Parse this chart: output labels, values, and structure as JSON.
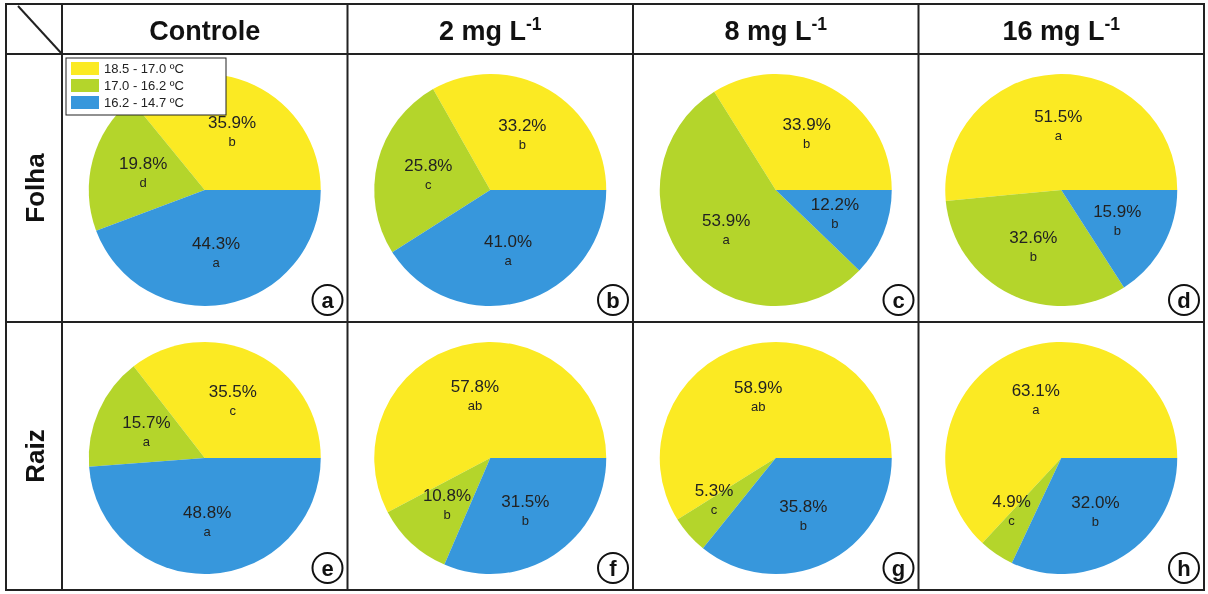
{
  "chart_data": [
    {
      "type": "pie",
      "title": "Controle",
      "ylabel": "Folha",
      "categories": [
        "18.5 - 17.0 ºC",
        "17.0 - 16.2 ºC",
        "16.2 - 14.7 ºC"
      ],
      "values": [
        35.9,
        19.8,
        44.3
      ],
      "value_labels": [
        "35.9%\nb",
        "19.8%\nd",
        "44.3%\na"
      ],
      "colors": [
        "#fbea23",
        "#b4d52b",
        "#3797dc"
      ],
      "legend": "top left",
      "annotations": [
        "a"
      ]
    },
    {
      "type": "pie",
      "title": "2 mg L$^{-1}$",
      "categories": [
        null,
        null,
        null
      ],
      "values": [
        33.2,
        25.8,
        41.0
      ],
      "value_labels": [
        "33.2%\nb",
        "25.8%\nc",
        "41.0%\na"
      ],
      "colors": [
        "#fbea23",
        "#b4d52b",
        "#3797dc"
      ],
      "annotations": [
        "b"
      ]
    },
    {
      "type": "pie",
      "title": "8 mg L$^{-1}$",
      "categories": [
        null,
        null,
        null
      ],
      "values": [
        33.9,
        53.9,
        12.2
      ],
      "value_labels": [
        "33.9%\nb",
        "53.9%\na",
        "12.2%\nb"
      ],
      "colors": [
        "#fbea23",
        "#b4d52b",
        "#3797dc"
      ],
      "annotations": [
        "c"
      ]
    },
    {
      "type": "pie",
      "title": "16 mg L$^{-1}$",
      "categories": [
        null,
        null,
        null
      ],
      "values": [
        51.5,
        32.6,
        15.9
      ],
      "value_labels": [
        "51.5%\na",
        "32.6%\nb",
        "15.9%\nb"
      ],
      "colors": [
        "#fbea23",
        "#b4d52b",
        "#3797dc"
      ],
      "annotations": [
        "d"
      ]
    },
    {
      "type": "pie",
      "ylabel": "Raiz",
      "categories": [
        null,
        null,
        null
      ],
      "values": [
        35.5,
        15.7,
        48.8
      ],
      "value_labels": [
        "35.5%\nc",
        "15.7%\na",
        "48.8%\na"
      ],
      "colors": [
        "#fbea23",
        "#b4d52b",
        "#3797dc"
      ],
      "annotations": [
        "e"
      ]
    },
    {
      "type": "pie",
      "categories": [
        null,
        null,
        null
      ],
      "values": [
        57.8,
        10.8,
        31.5
      ],
      "value_labels": [
        "57.8%\nab",
        "10.8%\nb",
        "31.5%\nb"
      ],
      "colors": [
        "#fbea23",
        "#b4d52b",
        "#3797dc"
      ],
      "annotations": [
        "f"
      ]
    },
    {
      "type": "pie",
      "categories": [
        null,
        null,
        null
      ],
      "values": [
        58.9,
        5.3,
        35.8
      ],
      "value_labels": [
        "58.9%\nab",
        "5.3%\nc",
        "35.8%\nb"
      ],
      "colors": [
        "#fbea23",
        "#b4d52b",
        "#3797dc"
      ],
      "annotations": [
        "g"
      ]
    },
    {
      "type": "pie",
      "categories": [
        null,
        null,
        null
      ],
      "values": [
        63.1,
        4.9,
        32.0
      ],
      "value_labels": [
        "63.1%\na",
        "4.9%\nc",
        "32.0%\nb"
      ],
      "colors": [
        "#fbea23",
        "#b4d52b",
        "#3797dc"
      ],
      "annotations": [
        "h"
      ]
    }
  ]
}
